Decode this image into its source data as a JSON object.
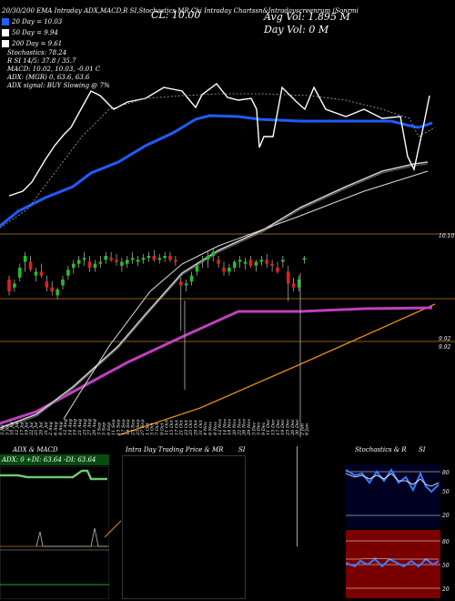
{
  "header": {
    "symbol_line": "20/30/200 EMA Intraday ADX,MACD,R SI,Stochastics MR Chi Intraday Chartssn&Intradayscreenrum (Sonrmi",
    "cl": "CL: 10.00",
    "avg_vol": "Avg Vol: 1.895 M",
    "day_vol": "Day Vol: 0   M"
  },
  "legend": [
    {
      "label": "20  Day = 10.03",
      "color": "#2060ff"
    },
    {
      "label": "50  Day = 9.94",
      "color": "#ffffff"
    },
    {
      "label": "200  Day = 9.61",
      "color": "#ffffff"
    }
  ],
  "stats": [
    "Stochastics: 78.24",
    "R               SI 14/5: 37.8 / 35.7",
    "MACD: 10.02,  10.03,  -0.01 C",
    "ADX:                      (MGR) 0,  63.6,  63.6",
    "ADX  signal:                          BUY Slowing @ 7%"
  ],
  "price_labels": {
    "top": "10.10",
    "mid": "9.92",
    "low": "9.92"
  },
  "dates": [
    "3 Jul",
    "5 Jul",
    "10 Jul",
    "12 Jul",
    "17 Jul",
    "19 Jul",
    "22 Jul",
    "25 Jul",
    "29 Jul",
    "31 Jul",
    "2 Aug",
    "6 Aug",
    "8 Aug",
    "12 Aug",
    "14 Aug",
    "19 Aug",
    "21 Aug",
    "23 Aug",
    "27 Aug",
    "29 Aug",
    "3 Sep",
    "5 Sep",
    "9 Sep",
    "11 Sep",
    "13 Sep",
    "17 Sep",
    "19 Sep",
    "23 Sep",
    "25 Sep",
    "27 Sep",
    "1 Oct",
    "3 Oct",
    "7 Oct",
    "9 Oct",
    "11 Oct",
    "15 Oct",
    "17 Oct",
    "21 Oct",
    "23 Oct",
    "25 Oct",
    "29 Oct",
    "31 Oct",
    "4 Nov",
    "6 Nov",
    "8 Nov",
    "12 Nov",
    "14 Nov",
    "18 Nov",
    "20 Nov",
    "22 Nov",
    "26 Nov",
    "29 Nov",
    "3 Dec",
    "5 Dec",
    "9 Dec",
    "11 Dec",
    "13 Dec",
    "17 Dec",
    "19 Dec",
    "23 Dec",
    "26 Dec",
    "30 Dec",
    "2 Jan",
    "6 Jan"
  ],
  "panels": {
    "adx_title": "ADX  & MACD",
    "adx_readout": "ADX: 0   +DI: 63.64   -DI: 63.64",
    "mr_title": "Intra  Day Trading Price  & MR",
    "mr_si": "SI",
    "stoch_title": "Stochastics & R",
    "stoch_si": "SI",
    "stoch_ticks": [
      "80",
      "50",
      "20"
    ],
    "rsi_ticks": [
      "80",
      "50",
      "20"
    ]
  },
  "chart_data": {
    "type": "candlestick",
    "title": "",
    "price_range": [
      9.6,
      10.2
    ],
    "candles_ohlc": [
      [
        9.96,
        9.98,
        9.88,
        9.9
      ],
      [
        9.92,
        9.96,
        9.9,
        9.94
      ],
      [
        9.97,
        10.04,
        9.95,
        10.02
      ],
      [
        10.05,
        10.1,
        10.0,
        10.08
      ],
      [
        10.05,
        10.08,
        10.0,
        10.01
      ],
      [
        9.98,
        10.02,
        9.95,
        10.0
      ],
      [
        10.0,
        10.04,
        9.97,
        9.98
      ],
      [
        9.95,
        9.98,
        9.9,
        9.92
      ],
      [
        9.92,
        9.95,
        9.88,
        9.9
      ],
      [
        9.88,
        9.92,
        9.86,
        9.91
      ],
      [
        9.93,
        9.98,
        9.91,
        9.96
      ],
      [
        9.98,
        10.03,
        9.96,
        10.01
      ],
      [
        10.02,
        10.06,
        9.99,
        10.04
      ],
      [
        10.04,
        10.08,
        10.02,
        10.06
      ],
      [
        10.06,
        10.1,
        10.03,
        10.07
      ],
      [
        10.05,
        10.08,
        10.0,
        10.02
      ],
      [
        10.02,
        10.06,
        10.0,
        10.04
      ],
      [
        10.04,
        10.08,
        10.02,
        10.05
      ],
      [
        10.06,
        10.1,
        10.04,
        10.08
      ],
      [
        10.07,
        10.1,
        10.05,
        10.06
      ],
      [
        10.06,
        10.09,
        10.03,
        10.05
      ],
      [
        10.03,
        10.07,
        10.0,
        10.05
      ],
      [
        10.04,
        10.08,
        10.02,
        10.06
      ],
      [
        10.06,
        10.1,
        10.04,
        10.07
      ],
      [
        10.05,
        10.08,
        10.03,
        10.06
      ],
      [
        10.06,
        10.09,
        10.04,
        10.07
      ],
      [
        10.07,
        10.1,
        10.05,
        10.08
      ],
      [
        10.08,
        10.11,
        10.05,
        10.06
      ],
      [
        10.06,
        10.09,
        10.04,
        10.07
      ],
      [
        10.07,
        10.1,
        10.05,
        10.08
      ],
      [
        10.08,
        10.1,
        10.05,
        10.06
      ],
      [
        10.06,
        10.08,
        10.03,
        10.05
      ],
      [
        9.95,
        9.97,
        9.7,
        9.93
      ],
      [
        9.93,
        9.96,
        9.9,
        9.94
      ],
      [
        9.95,
        10.0,
        9.93,
        9.98
      ],
      [
        10.0,
        10.04,
        9.98,
        10.03
      ],
      [
        10.05,
        10.08,
        10.02,
        10.06
      ],
      [
        10.06,
        10.1,
        10.02,
        10.08
      ],
      [
        10.08,
        10.12,
        10.05,
        10.1
      ],
      [
        10.06,
        10.08,
        10.02,
        10.04
      ],
      [
        10.02,
        10.05,
        9.98,
        10.0
      ],
      [
        10.0,
        10.04,
        9.98,
        10.02
      ],
      [
        10.02,
        10.06,
        10.0,
        10.05
      ],
      [
        10.05,
        10.08,
        10.02,
        10.06
      ],
      [
        10.04,
        10.07,
        10.01,
        10.05
      ],
      [
        10.06,
        10.08,
        10.02,
        10.03
      ],
      [
        10.03,
        10.06,
        10.0,
        10.05
      ],
      [
        10.05,
        10.08,
        10.03,
        10.06
      ],
      [
        10.06,
        10.09,
        10.02,
        10.04
      ],
      [
        10.04,
        10.06,
        10.0,
        10.03
      ],
      [
        10.02,
        10.05,
        9.99,
        10.0
      ],
      [
        10.05,
        10.08,
        10.02,
        10.06
      ],
      [
        10.0,
        10.03,
        9.85,
        9.94
      ],
      [
        9.94,
        9.97,
        9.9,
        9.92
      ],
      [
        9.92,
        9.98,
        9.9,
        9.96
      ],
      [
        10.06,
        10.08,
        10.04,
        10.07
      ]
    ]
  }
}
